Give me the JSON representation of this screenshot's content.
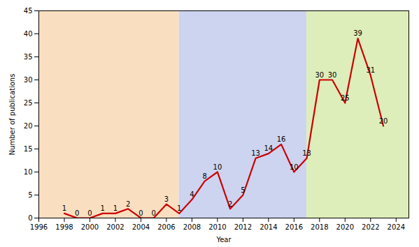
{
  "chart_data": {
    "type": "line",
    "x": [
      1998,
      1999,
      2000,
      2001,
      2002,
      2003,
      2004,
      2005,
      2006,
      2007,
      2008,
      2009,
      2010,
      2011,
      2012,
      2013,
      2014,
      2015,
      2016,
      2017,
      2018,
      2019,
      2020,
      2021,
      2022,
      2023
    ],
    "values": [
      1,
      0,
      0,
      1,
      1,
      2,
      0,
      0,
      3,
      1,
      4,
      8,
      10,
      2,
      5,
      13,
      14,
      16,
      10,
      13,
      30,
      30,
      25,
      39,
      31,
      20
    ],
    "color": "#cc0000",
    "xlabel": "Year",
    "ylabel": "Number of publications",
    "xlim": [
      1996,
      2025
    ],
    "ylim": [
      0,
      45
    ],
    "xticks": [
      1996,
      1998,
      2000,
      2002,
      2004,
      2006,
      2008,
      2010,
      2012,
      2014,
      2016,
      2018,
      2020,
      2022,
      2024
    ],
    "yticks": [
      0,
      5,
      10,
      15,
      20,
      25,
      30,
      35,
      40,
      45
    ],
    "regions": [
      {
        "xstart": 1996,
        "xend": 2007,
        "color": "#f9dfc0"
      },
      {
        "xstart": 2007,
        "xend": 2017,
        "color": "#ccd4f0"
      },
      {
        "xstart": 2017,
        "xend": 2025,
        "color": "#ddeebb"
      }
    ],
    "grid": false,
    "data_labels": true
  }
}
